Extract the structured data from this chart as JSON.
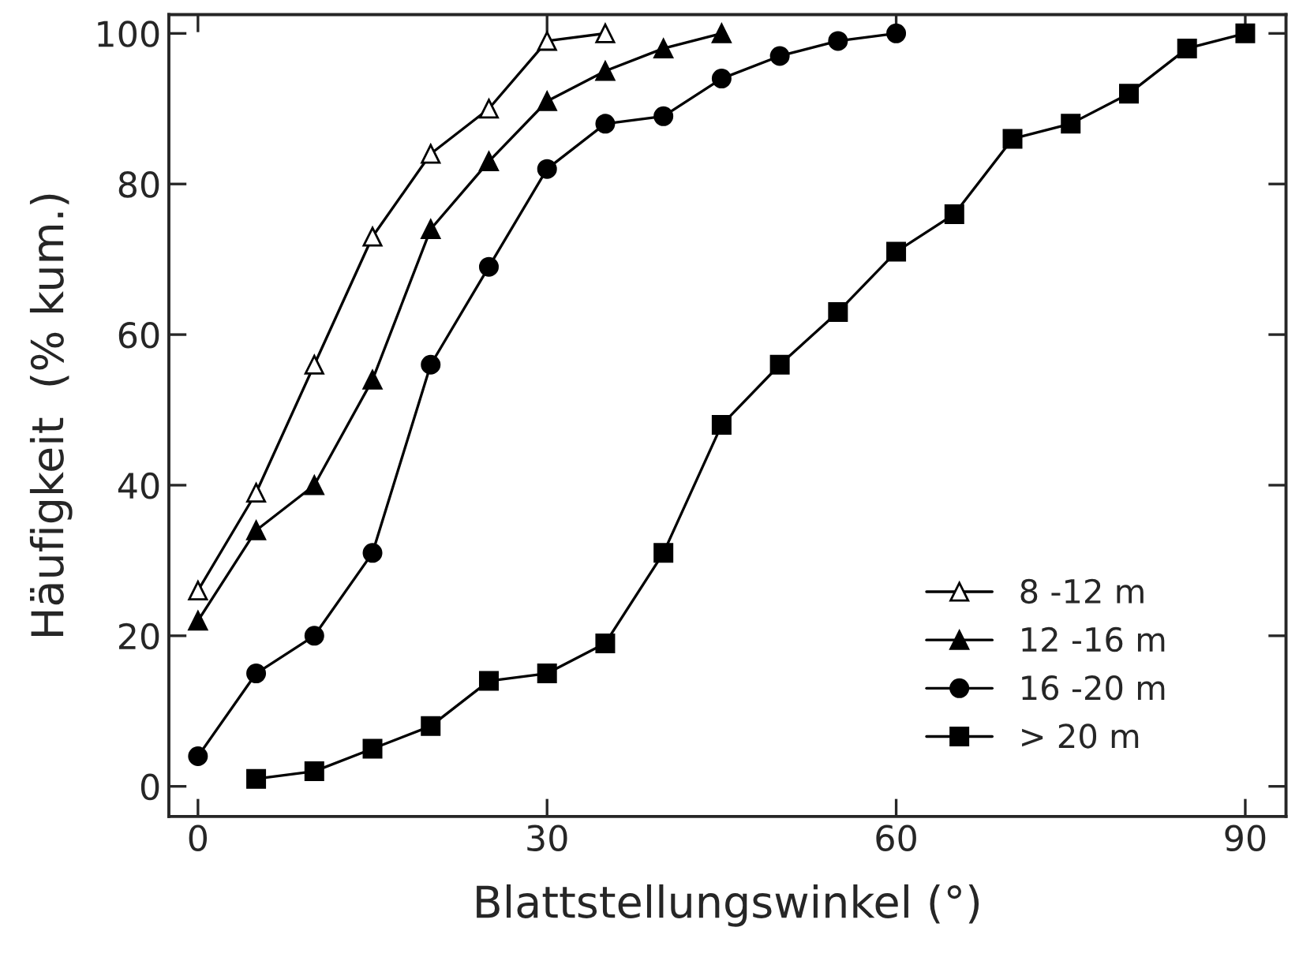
{
  "chart_data": {
    "type": "line",
    "xlabel": "Blattstellungswinkel (°)",
    "ylabel": "Häufigkeit  (% kum.)",
    "xlim": [
      -2.5,
      93.5
    ],
    "ylim": [
      -4,
      102.5
    ],
    "xticks": [
      0,
      30,
      60,
      90
    ],
    "yticks": [
      0,
      20,
      40,
      60,
      80,
      100
    ],
    "legend": "bottom right",
    "grid": false,
    "line_style": "solid",
    "series": [
      {
        "name": "8 -12 m",
        "color": "#ffffff",
        "marker": "triangle",
        "x": [
          0,
          5,
          10,
          15,
          20,
          25,
          30,
          35
        ],
        "values": [
          26,
          39,
          56,
          73,
          84,
          90,
          99,
          100
        ]
      },
      {
        "name": "12 -16 m",
        "color": "#000000",
        "marker": "triangle",
        "x": [
          0,
          5,
          10,
          15,
          20,
          25,
          30,
          35,
          40,
          45
        ],
        "values": [
          22,
          34,
          40,
          54,
          74,
          83,
          91,
          95,
          98,
          100
        ]
      },
      {
        "name": "16 -20 m",
        "color": "#000000",
        "marker": "circle",
        "x": [
          0,
          5,
          10,
          15,
          20,
          25,
          30,
          35,
          40,
          45,
          50,
          55,
          60
        ],
        "values": [
          4,
          15,
          20,
          31,
          56,
          69,
          82,
          88,
          89,
          94,
          97,
          99,
          100
        ]
      },
      {
        "name": "> 20 m",
        "color": "#000000",
        "marker": "square",
        "x": [
          5,
          10,
          15,
          20,
          25,
          30,
          35,
          40,
          45,
          50,
          55,
          60,
          65,
          70,
          75,
          80,
          85,
          90
        ],
        "values": [
          1,
          2,
          5,
          8,
          14,
          15,
          19,
          31,
          48,
          56,
          63,
          71,
          76,
          86,
          88,
          92,
          98,
          100
        ]
      }
    ]
  }
}
